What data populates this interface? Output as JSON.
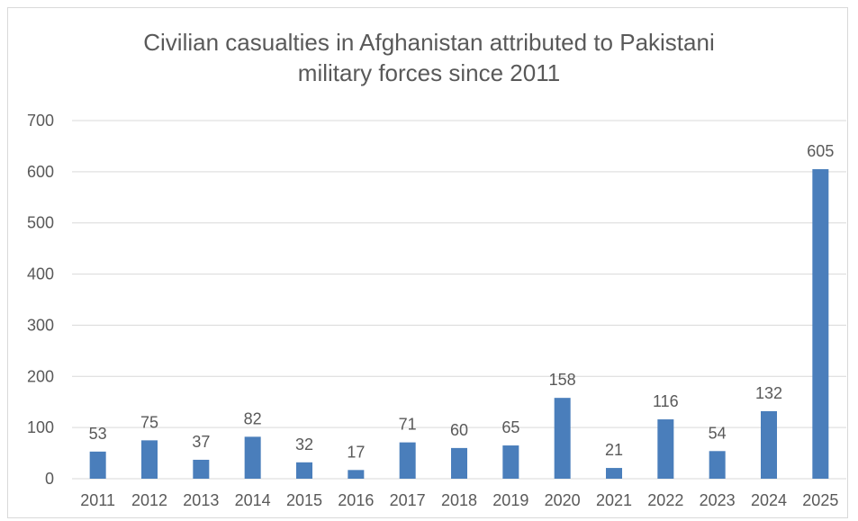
{
  "chart_data": {
    "type": "bar",
    "title": "Civilian casualties in Afghanistan attributed to Pakistani\nmilitary forces since 2011",
    "xlabel": "",
    "ylabel": "",
    "categories": [
      "2011",
      "2012",
      "2013",
      "2014",
      "2015",
      "2016",
      "2017",
      "2018",
      "2019",
      "2020",
      "2021",
      "2022",
      "2023",
      "2024",
      "2025"
    ],
    "values": [
      53,
      75,
      37,
      82,
      32,
      17,
      71,
      60,
      65,
      158,
      21,
      116,
      54,
      132,
      605
    ],
    "ylim": [
      0,
      700
    ],
    "yticks": [
      0,
      100,
      200,
      300,
      400,
      500,
      600,
      700
    ],
    "grid": true,
    "legend": "none",
    "bar_color": "#4a7ebb",
    "grid_color": "#d9d9d9"
  }
}
